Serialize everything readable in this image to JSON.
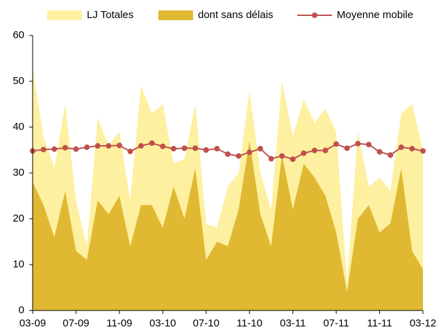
{
  "chart_data": {
    "type": "area",
    "categories": [
      "03-09",
      null,
      null,
      null,
      "07-09",
      null,
      null,
      null,
      "11-09",
      null,
      null,
      null,
      "03-10",
      null,
      null,
      null,
      "07-10",
      null,
      null,
      null,
      "11-10",
      null,
      null,
      null,
      "03-11",
      null,
      null,
      null,
      "07-11",
      null,
      null,
      null,
      "11-11",
      null,
      null,
      null,
      "03-12"
    ],
    "series": [
      {
        "name": "LJ Totales",
        "type": "area",
        "color": "#fdf0a0",
        "values": [
          53,
          38,
          31,
          45,
          24,
          14,
          42,
          36,
          39,
          24,
          49,
          43,
          45,
          32,
          33,
          45,
          19,
          18,
          27,
          30,
          48,
          30,
          22,
          50,
          38,
          46,
          41,
          44,
          39,
          6,
          39,
          27,
          29,
          26,
          43,
          45,
          35
        ]
      },
      {
        "name": "dont sans délais",
        "type": "area",
        "color": "#e0b832",
        "values": [
          28,
          23,
          16,
          26,
          13,
          11,
          24,
          21,
          25,
          14,
          23,
          23,
          18,
          27,
          20,
          31,
          11,
          15,
          14,
          22,
          37,
          21,
          14,
          34,
          22,
          32,
          29,
          25,
          17,
          4,
          20,
          23,
          17,
          19,
          31,
          13,
          9
        ]
      },
      {
        "name": "Moyenne mobile",
        "type": "line",
        "color": "#c0504d",
        "values": [
          34.8,
          35.1,
          35.2,
          35.5,
          35.2,
          35.6,
          35.9,
          35.9,
          36.0,
          34.7,
          35.9,
          36.5,
          35.8,
          35.3,
          35.4,
          35.4,
          35.0,
          35.3,
          34.1,
          33.7,
          34.5,
          35.3,
          33.1,
          33.7,
          33.0,
          34.3,
          34.9,
          34.9,
          36.3,
          35.4,
          36.4,
          36.2,
          34.6,
          33.9,
          35.6,
          35.3,
          34.8
        ]
      }
    ],
    "ylim": [
      0,
      60
    ],
    "yticks": [
      0,
      10,
      20,
      30,
      40,
      50,
      60
    ],
    "grid": false
  }
}
